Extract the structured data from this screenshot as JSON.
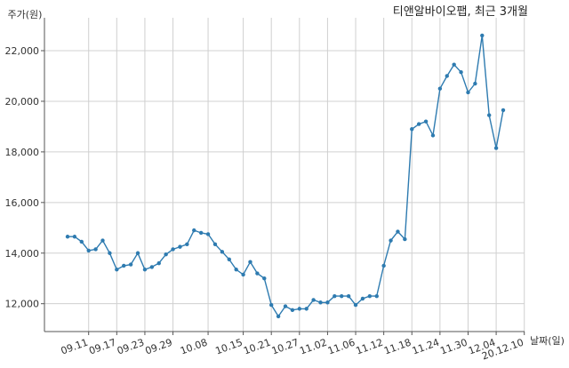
{
  "chart_data": {
    "type": "line",
    "title": "티앤알바이오팹, 최근 3개월",
    "xlabel": "날짜(일)",
    "ylabel": "주가(원)",
    "ylim": [
      10900,
      23300
    ],
    "yticks": [
      12000,
      14000,
      16000,
      18000,
      20000,
      22000
    ],
    "ytick_labels": [
      "12,000",
      "14,000",
      "16,000",
      "18,000",
      "20,000",
      "22,000"
    ],
    "xtick_labels": [
      "09.11",
      "09.17",
      "09.23",
      "09.29",
      "10.08",
      "10.15",
      "10.21",
      "10.27",
      "11.02",
      "11.06",
      "11.12",
      "11.18",
      "11.24",
      "11.30",
      "12.04",
      "20.12.10"
    ],
    "xtick_index": [
      3,
      7,
      11,
      15,
      20,
      25,
      29,
      33,
      37,
      41,
      45,
      49,
      53,
      57,
      61,
      65
    ],
    "grid": true,
    "line_color": "#2e7bb0",
    "series": [
      {
        "values": [
          14650,
          14650,
          14450,
          14100,
          14150,
          14500,
          14000,
          13350,
          13500,
          13550,
          14000,
          13350,
          13450,
          13600,
          13950,
          14150,
          14250,
          14350,
          14900,
          14800,
          14750,
          14350,
          14050,
          13750,
          13350,
          13150,
          13650,
          13200,
          13000,
          11950,
          11500,
          11900,
          11750,
          11800,
          11800,
          12150,
          12050,
          12050,
          12300,
          12300,
          12300,
          11950,
          12200,
          12300,
          12300,
          13500,
          14500,
          14850,
          14550,
          18900,
          19100,
          19200,
          18650,
          20500,
          21000,
          21450,
          21150,
          20350,
          20700,
          22600,
          19450,
          18150,
          19650
        ]
      }
    ]
  }
}
